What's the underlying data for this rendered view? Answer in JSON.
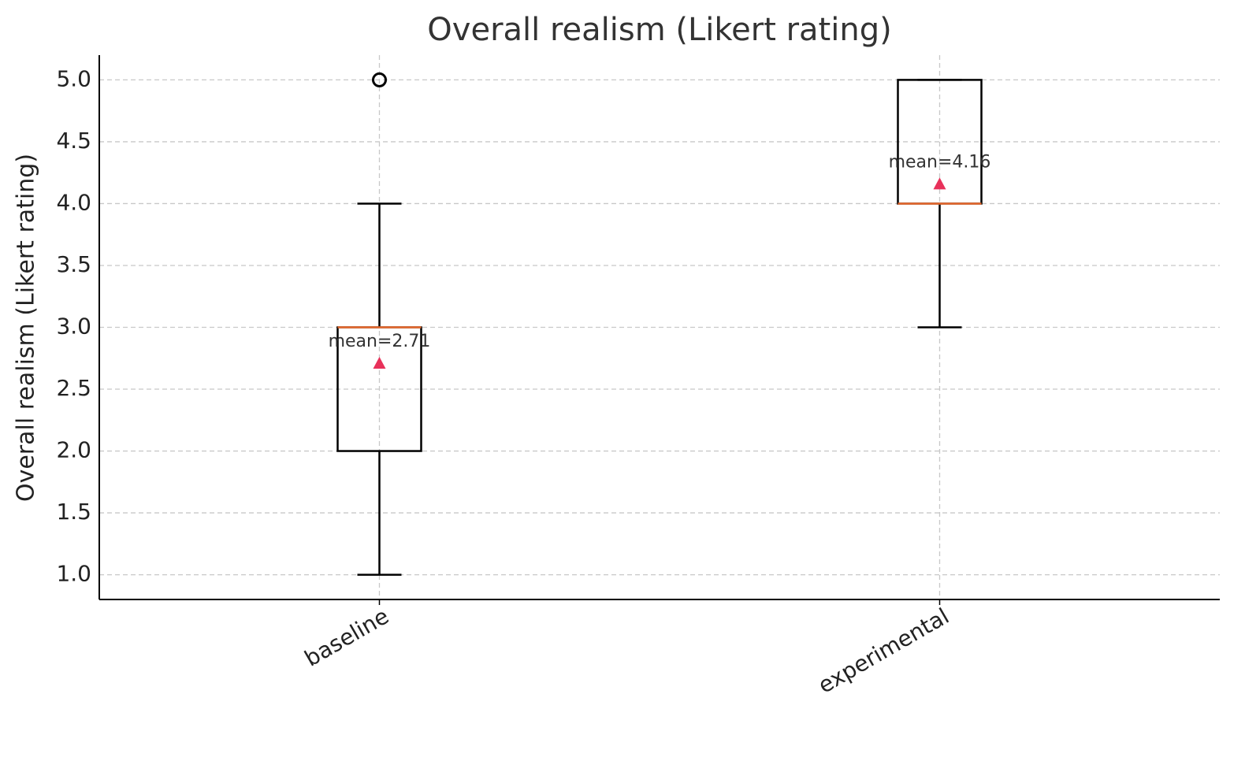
{
  "chart_data": {
    "type": "box",
    "title": "Overall realism (Likert rating)",
    "ylabel": "Overall realism (Likert rating)",
    "categories": [
      "baseline",
      "experimental"
    ],
    "boxes": [
      {
        "whislo": 1,
        "q1": 2,
        "med": 3,
        "q3": 3,
        "whishi": 4,
        "fliers": [
          5
        ],
        "mean": 2.71,
        "mean_label": "mean=2.71"
      },
      {
        "whislo": 3,
        "q1": 4,
        "med": 4,
        "q3": 5,
        "whishi": 5,
        "fliers": [],
        "mean": 4.16,
        "mean_label": "mean=4.16"
      }
    ],
    "box_color": "#000000",
    "median_color": "#e8692d",
    "mean_color": "#e8315a",
    "ylim": [
      0.8,
      5.2
    ],
    "yticks": [
      {
        "value": 1,
        "label": "1.0"
      },
      {
        "value": 1.5,
        "label": "1.5"
      },
      {
        "value": 2,
        "label": "2.0"
      },
      {
        "value": 2.5,
        "label": "2.5"
      },
      {
        "value": 3,
        "label": "3.0"
      },
      {
        "value": 3.5,
        "label": "3.5"
      },
      {
        "value": 4,
        "label": "4.0"
      },
      {
        "value": 4.5,
        "label": "4.5"
      },
      {
        "value": 5,
        "label": "5.0"
      }
    ],
    "grid": true
  }
}
